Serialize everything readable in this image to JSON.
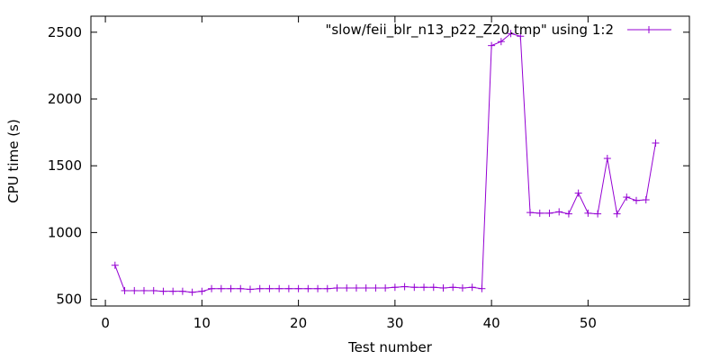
{
  "chart_data": {
    "type": "line",
    "title": "",
    "xlabel": "Test number",
    "ylabel": "CPU time (s)",
    "xlim": [
      -1.5,
      60.5
    ],
    "ylim": [
      450,
      2620
    ],
    "xticks": [
      0,
      10,
      20,
      30,
      40,
      50
    ],
    "yticks": [
      500,
      1000,
      1500,
      2000,
      2500
    ],
    "grid": false,
    "legend_position": "top-right",
    "series": [
      {
        "name": "\"slow/feii_blr_n13_p22_Z20.tmp\" using 1:2",
        "color": "#9400d3",
        "marker": "plus",
        "x": [
          1,
          2,
          3,
          4,
          5,
          6,
          7,
          8,
          9,
          10,
          11,
          12,
          13,
          14,
          15,
          16,
          17,
          18,
          19,
          20,
          21,
          22,
          23,
          24,
          25,
          26,
          27,
          28,
          29,
          30,
          31,
          32,
          33,
          34,
          35,
          36,
          37,
          38,
          39,
          40,
          41,
          42,
          43,
          44,
          45,
          46,
          47,
          48,
          49,
          50,
          51,
          52,
          53,
          54,
          55,
          56,
          57
        ],
        "y": [
          755,
          565,
          565,
          565,
          565,
          560,
          560,
          560,
          553,
          560,
          580,
          580,
          580,
          580,
          575,
          580,
          580,
          580,
          580,
          580,
          580,
          580,
          580,
          585,
          585,
          585,
          585,
          585,
          585,
          590,
          595,
          590,
          590,
          590,
          585,
          590,
          585,
          590,
          580,
          2400,
          2430,
          2490,
          2470,
          1150,
          1145,
          1145,
          1155,
          1140,
          1295,
          1145,
          1140,
          1555,
          1140,
          1265,
          1240,
          1245,
          1670
        ]
      }
    ]
  }
}
